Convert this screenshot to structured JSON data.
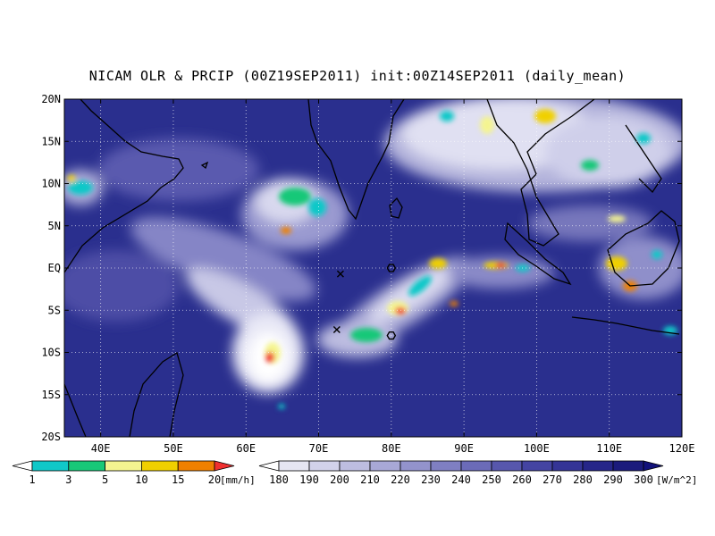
{
  "title": "NICAM OLR & PRCIP (00Z19SEP2011) init:00Z14SEP2011 (daily_mean)",
  "map": {
    "lat_labels": [
      "20N",
      "15N",
      "10N",
      "5N",
      "EQ",
      "5S",
      "10S",
      "15S",
      "20S"
    ],
    "lon_labels": [
      "40E",
      "50E",
      "60E",
      "70E",
      "80E",
      "90E",
      "100E",
      "110E",
      "120E"
    ],
    "background_color": "#2a2f8e",
    "grid": "dotted",
    "markers": [
      {
        "symbol": "x",
        "lon": 73,
        "lat": -0.7
      },
      {
        "symbol": "x",
        "lon": 72.5,
        "lat": -7.3
      },
      {
        "symbol": "hexagon",
        "lon": 80,
        "lat": 0
      },
      {
        "symbol": "hexagon",
        "lon": 80,
        "lat": -8
      }
    ]
  },
  "precip_legend": {
    "labels": [
      "1",
      "3",
      "5",
      "10",
      "15",
      "20"
    ],
    "unit": "[mm/h]",
    "colors": [
      "#ffffff",
      "#10c8c8",
      "#18c878",
      "#f4f490",
      "#f0d000",
      "#f08000",
      "#f03030"
    ]
  },
  "olr_legend": {
    "labels": [
      "180",
      "190",
      "200",
      "210",
      "220",
      "230",
      "240",
      "250",
      "260",
      "270",
      "280",
      "290",
      "300"
    ],
    "unit": "[W/m^2]",
    "colors": [
      "#ffffff",
      "#e6e6f2",
      "#d2d2ea",
      "#bdbde0",
      "#a8a8d6",
      "#9393cc",
      "#7f7fc2",
      "#6b6bb8",
      "#5757ad",
      "#4444a2",
      "#343496",
      "#262689",
      "#1b1b7c",
      "#12127a"
    ]
  }
}
